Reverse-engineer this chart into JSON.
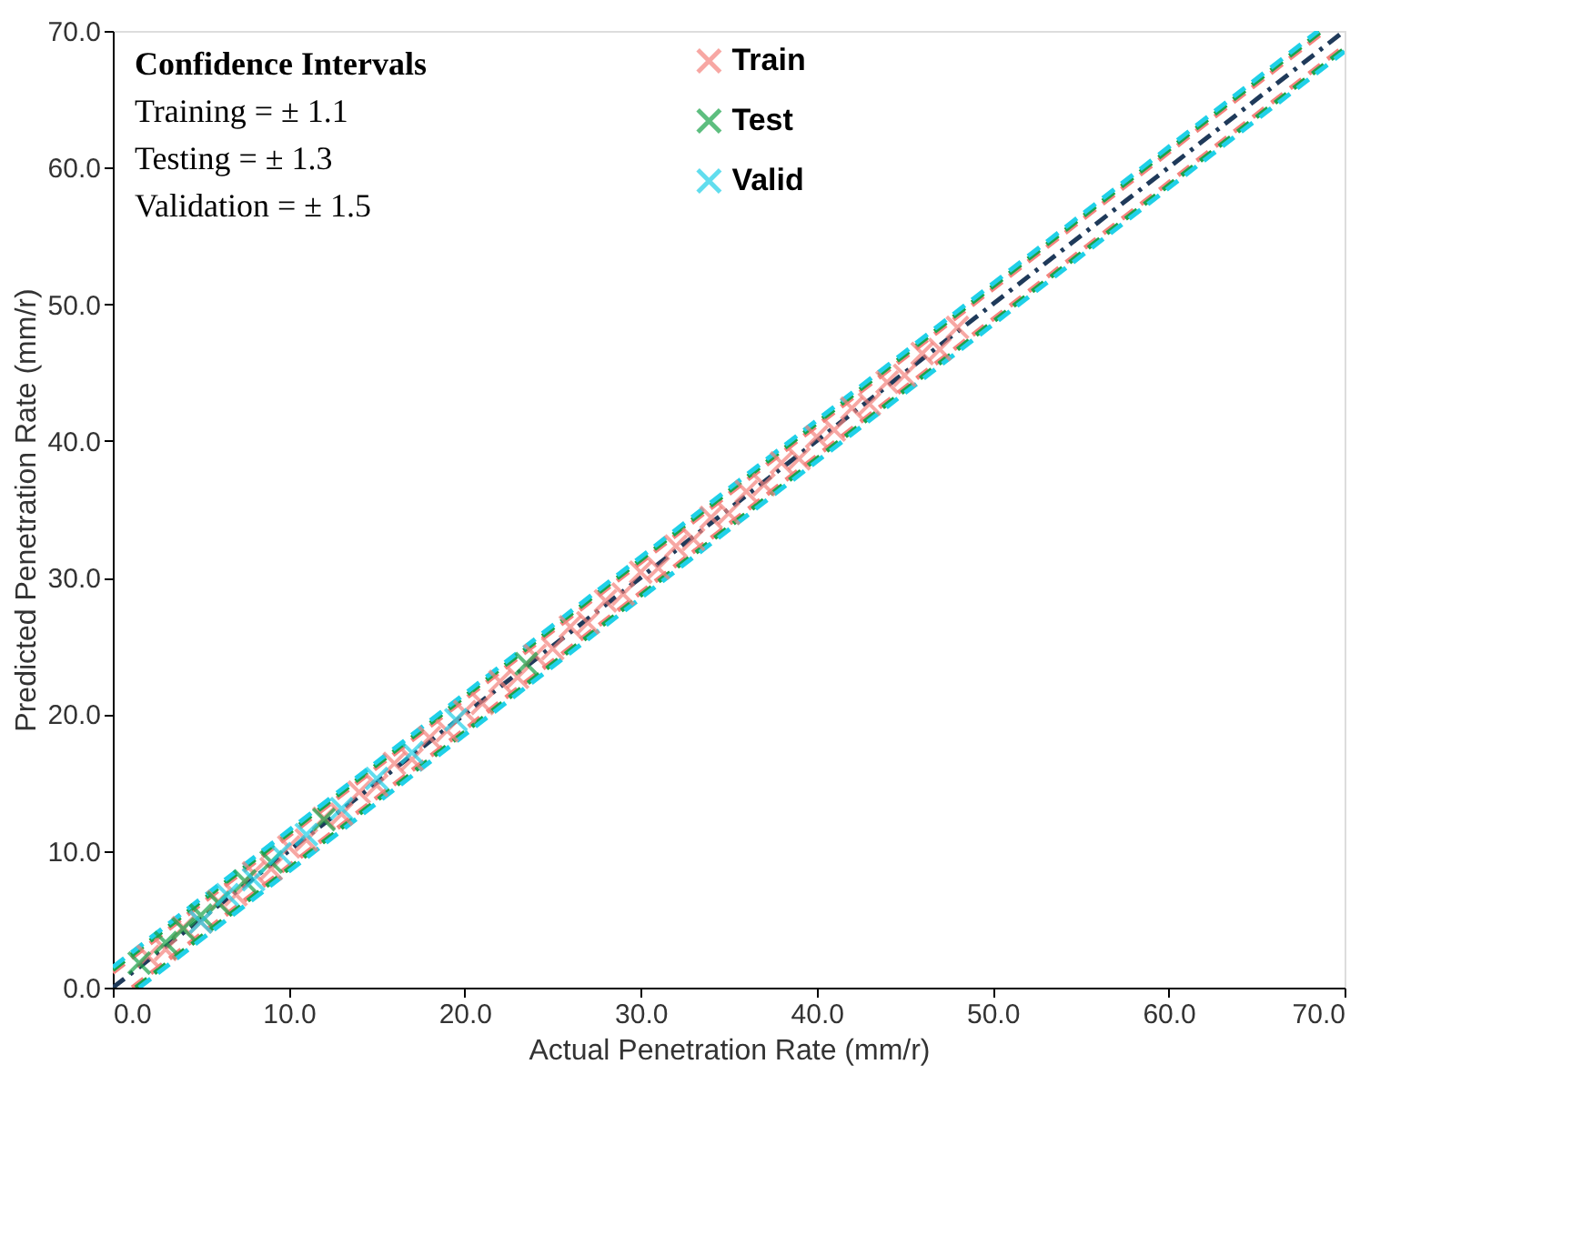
{
  "chart_data": {
    "type": "scatter",
    "xlabel": "Actual Penetration Rate (mm/r)",
    "ylabel": "Predicted Penetration Rate (mm/r)",
    "xlim": [
      0,
      70
    ],
    "ylim": [
      0,
      70
    ],
    "xticks": [
      {
        "value": 0,
        "label": "0.0"
      },
      {
        "value": 10,
        "label": "10.0"
      },
      {
        "value": 20,
        "label": "20.0"
      },
      {
        "value": 30,
        "label": "30.0"
      },
      {
        "value": 40,
        "label": "40.0"
      },
      {
        "value": 50,
        "label": "50.0"
      },
      {
        "value": 60,
        "label": "60.0"
      },
      {
        "value": 70,
        "label": "70.0"
      }
    ],
    "yticks": [
      {
        "value": 0,
        "label": "0.0"
      },
      {
        "value": 10,
        "label": "10.0"
      },
      {
        "value": 20,
        "label": "20.0"
      },
      {
        "value": 30,
        "label": "30.0"
      },
      {
        "value": 40,
        "label": "40.0"
      },
      {
        "value": 50,
        "label": "50.0"
      },
      {
        "value": 60,
        "label": "60.0"
      },
      {
        "value": 70,
        "label": "70.0"
      }
    ],
    "annotations": [
      "Confidence Intervals",
      "Training = ± 1.1",
      "Testing = ± 1.3",
      "Validation = ± 1.5"
    ],
    "grid": false,
    "legend": "top",
    "marker": "cross",
    "series": [
      {
        "type": "line",
        "color": "#f4837d",
        "line_style": "dashed",
        "marker": "none",
        "x": [
          0,
          68.9
        ],
        "values": [
          1.1,
          70
        ]
      },
      {
        "type": "line",
        "color": "#f4837d",
        "line_style": "dashed",
        "marker": "none",
        "x": [
          1.1,
          70
        ],
        "values": [
          0,
          68.9
        ]
      },
      {
        "type": "line",
        "color": "#1aa34a",
        "line_style": "dashed",
        "marker": "none",
        "x": [
          0,
          68.7
        ],
        "values": [
          1.3,
          70
        ]
      },
      {
        "type": "line",
        "color": "#1aa34a",
        "line_style": "dashed",
        "marker": "none",
        "x": [
          1.3,
          70
        ],
        "values": [
          0,
          68.7
        ]
      },
      {
        "type": "line",
        "color": "#1fd0e8",
        "line_style": "dashed",
        "marker": "none",
        "x": [
          0,
          68.5
        ],
        "values": [
          1.5,
          70
        ]
      },
      {
        "type": "line",
        "color": "#1fd0e8",
        "line_style": "dashed",
        "marker": "none",
        "x": [
          1.5,
          70
        ],
        "values": [
          0,
          68.5
        ]
      },
      {
        "type": "line",
        "color": "#1f3a5a",
        "line_style": "dotted",
        "marker": "none",
        "x": [
          0,
          70
        ],
        "values": [
          0,
          70
        ]
      },
      {
        "name": "Train",
        "color": "#f4837d",
        "x": [
          2,
          3,
          4,
          5,
          6,
          7,
          8,
          9,
          10,
          11,
          12,
          13,
          14,
          15,
          16,
          17,
          18,
          19,
          20,
          21,
          22,
          23,
          24,
          25,
          26,
          27,
          28,
          29,
          30,
          31,
          32,
          33,
          34,
          35,
          36,
          37,
          38,
          39,
          40,
          41,
          42,
          43,
          44,
          45,
          46,
          47,
          48
        ],
        "values": [
          2.3,
          2.8,
          4.4,
          4.8,
          6.3,
          6.8,
          8.4,
          8.7,
          10.3,
          10.8,
          12.4,
          12.7,
          14.3,
          14.8,
          16.4,
          16.7,
          18.3,
          18.8,
          20.2,
          20.8,
          22.4,
          22.7,
          24.3,
          24.8,
          26.4,
          26.7,
          28.3,
          28.8,
          30.4,
          30.7,
          32.3,
          32.8,
          34.4,
          34.7,
          36.3,
          36.8,
          38.4,
          38.7,
          40.3,
          40.8,
          42.4,
          42.7,
          44.3,
          44.8,
          46.4,
          46.7,
          48.3
        ]
      },
      {
        "name": "Test",
        "color": "#1aa34a",
        "x": [
          1.5,
          3,
          4,
          5,
          6,
          7.5,
          9,
          12,
          23.5
        ],
        "values": [
          1.8,
          3.3,
          4.3,
          5.3,
          6.2,
          7.8,
          9.2,
          12.3,
          23.7
        ]
      },
      {
        "name": "Valid",
        "color": "#1fd0e8",
        "x": [
          5,
          6.5,
          8,
          9.5,
          11,
          13,
          15,
          17,
          19.5
        ],
        "values": [
          4.8,
          6.8,
          7.9,
          9.8,
          11.2,
          13.1,
          15.3,
          17.2,
          19.6
        ]
      }
    ]
  }
}
